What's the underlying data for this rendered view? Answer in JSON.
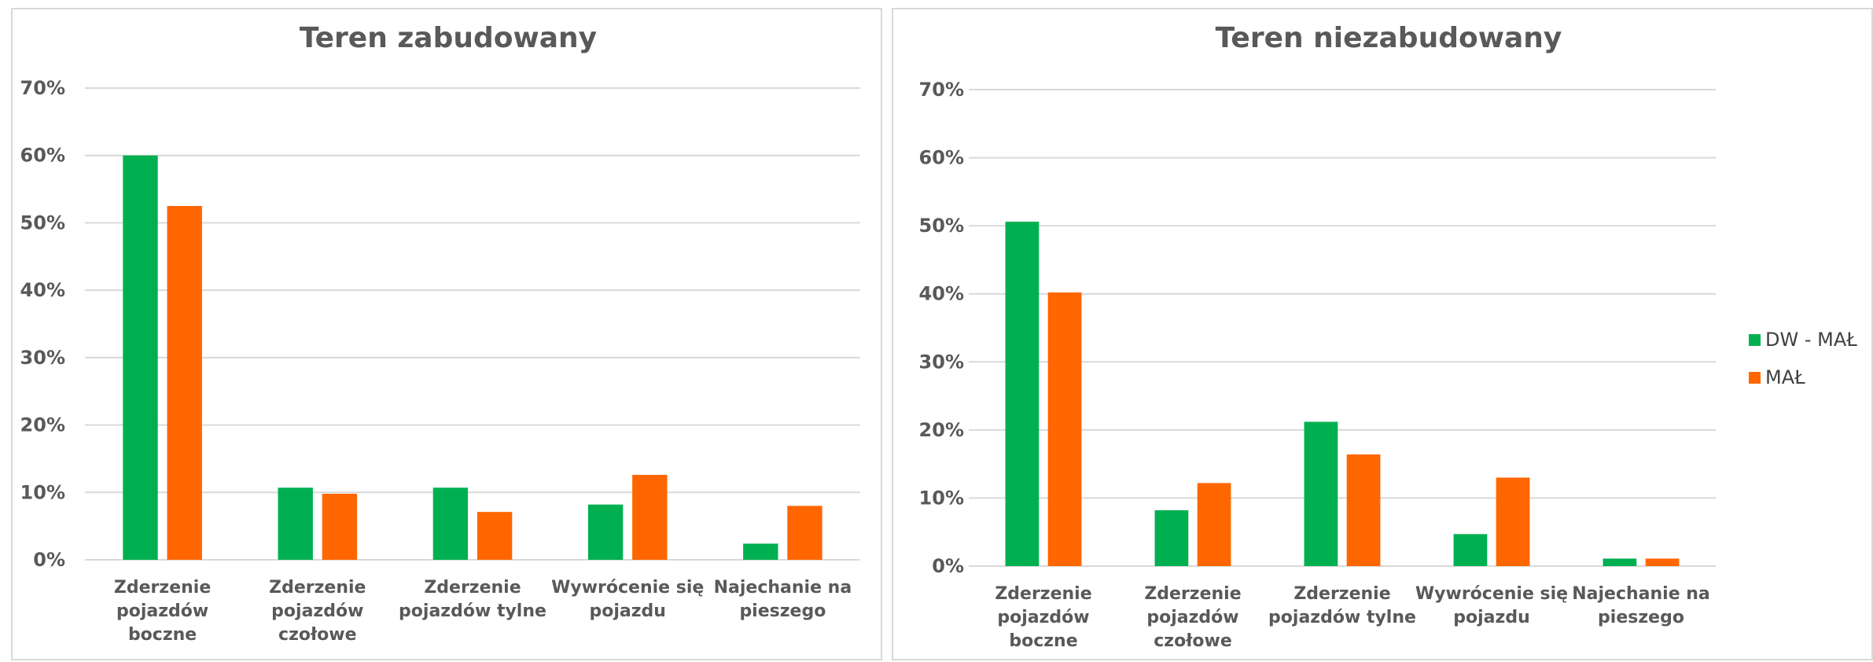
{
  "colors": {
    "DW - MAŁ": "#00b050",
    "MAŁ": "#ff6600",
    "grid": "#d9d9d9",
    "axis_text": "#595959"
  },
  "legend": [
    {
      "name": "DW - MAŁ"
    },
    {
      "name": "MAŁ"
    }
  ],
  "chart_data": [
    {
      "type": "bar",
      "title": "Teren zabudowany",
      "categories": [
        [
          "Zderzenie",
          "pojazdów",
          "boczne"
        ],
        [
          "Zderzenie",
          "pojazdów",
          "czołowe"
        ],
        [
          "Zderzenie",
          "pojazdów tylne"
        ],
        [
          "Wywrócenie się",
          "pojazdu"
        ],
        [
          "Najechanie na",
          "pieszego"
        ]
      ],
      "series": [
        {
          "name": "DW - MAŁ",
          "values": [
            60,
            10.7,
            10.7,
            8.2,
            2.4
          ]
        },
        {
          "name": "MAŁ",
          "values": [
            52.5,
            9.8,
            7.1,
            12.6,
            8.0
          ]
        }
      ],
      "ylim": [
        0,
        70
      ],
      "yticks": [
        "0%",
        "10%",
        "20%",
        "30%",
        "40%",
        "50%",
        "60%",
        "70%"
      ],
      "grid": true
    },
    {
      "type": "bar",
      "title": "Teren niezabudowany",
      "categories": [
        [
          "Zderzenie",
          "pojazdów",
          "boczne"
        ],
        [
          "Zderzenie",
          "pojazdów",
          "czołowe"
        ],
        [
          "Zderzenie",
          "pojazdów tylne"
        ],
        [
          "Wywrócenie się",
          "pojazdu"
        ],
        [
          "Najechanie na",
          "pieszego"
        ]
      ],
      "series": [
        {
          "name": "DW - MAŁ",
          "values": [
            50.6,
            8.2,
            21.2,
            4.7,
            1.1
          ]
        },
        {
          "name": "MAŁ",
          "values": [
            40.2,
            12.2,
            16.4,
            13.0,
            1.1
          ]
        }
      ],
      "ylim": [
        0,
        70
      ],
      "yticks": [
        "0%",
        "10%",
        "20%",
        "30%",
        "40%",
        "50%",
        "60%",
        "70%"
      ],
      "grid": true,
      "legend_position": "right"
    }
  ]
}
